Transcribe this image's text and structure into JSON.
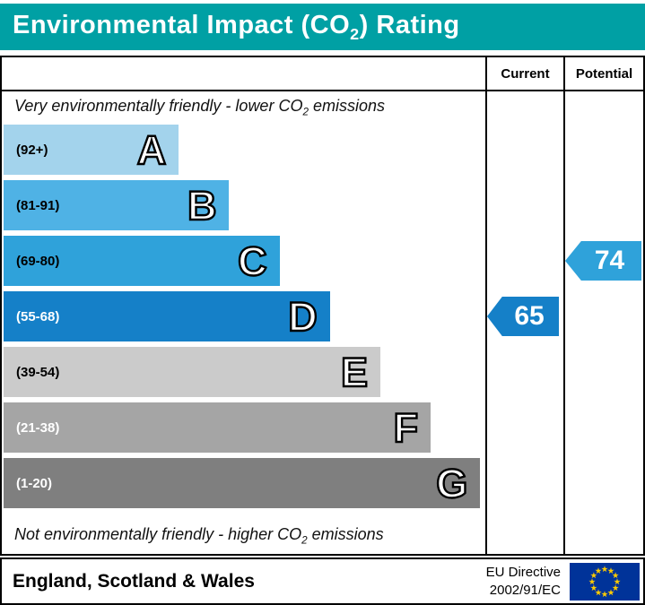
{
  "title": {
    "prefix": "Environmental Impact (CO",
    "sub": "2",
    "suffix": ") Rating"
  },
  "columns": {
    "current": "Current",
    "potential": "Potential"
  },
  "notes": {
    "top_prefix": "Very environmentally friendly - lower CO",
    "top_sub": "2",
    "top_suffix": " emissions",
    "bottom_prefix": "Not environmentally friendly - higher CO",
    "bottom_sub": "2",
    "bottom_suffix": " emissions"
  },
  "chart_data": {
    "type": "bar",
    "title": "Environmental Impact (CO2) Rating",
    "bands": [
      {
        "letter": "A",
        "range": "(92+)",
        "color": "#a3d3ec",
        "width_pct": 36.5,
        "range_text_color": "#000000"
      },
      {
        "letter": "B",
        "range": "(81-91)",
        "color": "#4fb2e5",
        "width_pct": 47.0,
        "range_text_color": "#000000"
      },
      {
        "letter": "C",
        "range": "(69-80)",
        "color": "#2fa2da",
        "width_pct": 57.5,
        "range_text_color": "#000000"
      },
      {
        "letter": "D",
        "range": "(55-68)",
        "color": "#1580c8",
        "width_pct": 68.0,
        "range_text_color": "#ffffff"
      },
      {
        "letter": "E",
        "range": "(39-54)",
        "color": "#cbcbcb",
        "width_pct": 78.5,
        "range_text_color": "#000000"
      },
      {
        "letter": "F",
        "range": "(21-38)",
        "color": "#a5a5a5",
        "width_pct": 89.0,
        "range_text_color": "#ffffff"
      },
      {
        "letter": "G",
        "range": "(1-20)",
        "color": "#7f7f7f",
        "width_pct": 99.3,
        "range_text_color": "#ffffff"
      }
    ],
    "current": {
      "label": "Current",
      "value": 65,
      "band": "D",
      "color": "#1580c8"
    },
    "potential": {
      "label": "Potential",
      "value": 74,
      "band": "C",
      "color": "#2fa2da"
    }
  },
  "footer": {
    "region": "England, Scotland & Wales",
    "directive_line1": "EU Directive",
    "directive_line2": "2002/91/EC",
    "flag_colors": {
      "background": "#003399",
      "stars": "#ffcc00"
    }
  },
  "theme": {
    "header_bg": "#00a0a4",
    "header_text": "#ffffff",
    "border": "#000000"
  }
}
